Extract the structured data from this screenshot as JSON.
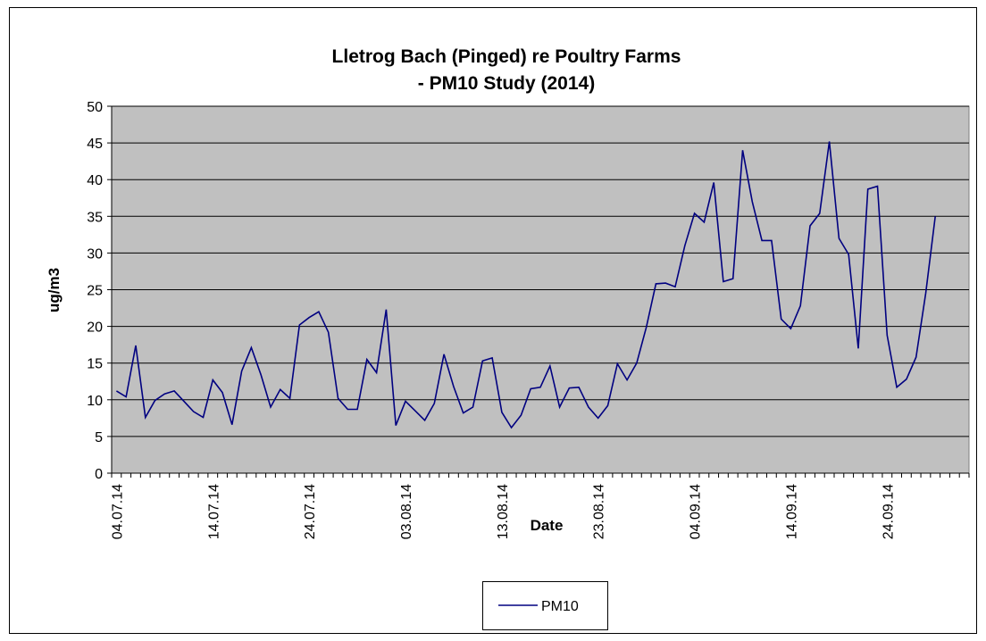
{
  "chart_data": {
    "type": "line",
    "title": [
      "Lletrog Bach (Pinged) re Poultry Farms",
      "- PM10 Study (2014)"
    ],
    "x_label": "Date",
    "y_label": "ug/m3",
    "categories": [
      "04.07.14",
      null,
      null,
      null,
      null,
      null,
      null,
      null,
      null,
      null,
      "14.07.14",
      null,
      null,
      null,
      null,
      null,
      null,
      null,
      null,
      null,
      "24.07.14",
      null,
      null,
      null,
      null,
      null,
      null,
      null,
      null,
      null,
      "03.08.14",
      null,
      null,
      null,
      null,
      null,
      null,
      null,
      null,
      null,
      "13.08.14",
      null,
      null,
      null,
      null,
      null,
      null,
      null,
      null,
      null,
      "23.08.14",
      null,
      null,
      null,
      null,
      null,
      null,
      null,
      null,
      null,
      "04.09.14",
      null,
      null,
      null,
      null,
      null,
      null,
      null,
      null,
      null,
      "14.09.14",
      null,
      null,
      null,
      null,
      null,
      null,
      null,
      null,
      null,
      "24.09.14",
      null,
      null,
      null,
      null,
      null,
      null,
      null,
      null
    ],
    "series": [
      {
        "name": "PM10",
        "color": "#000080",
        "values": [
          11.2,
          10.4,
          17.4,
          7.6,
          9.9,
          10.8,
          11.2,
          9.8,
          8.4,
          7.6,
          12.7,
          11.0,
          6.6,
          13.9,
          17.1,
          13.4,
          9.0,
          11.4,
          10.2,
          20.2,
          21.2,
          22.0,
          19.2,
          10.2,
          8.7,
          8.7,
          15.5,
          13.7,
          22.3,
          6.5,
          9.8,
          8.5,
          7.2,
          9.5,
          16.2,
          11.8,
          8.2,
          9.0,
          15.3,
          15.7,
          8.3,
          6.2,
          7.9,
          11.5,
          11.7,
          14.6,
          9.0,
          11.6,
          11.7,
          9.0,
          7.5,
          9.2,
          14.9,
          12.7,
          15.0,
          19.9,
          25.8,
          25.9,
          25.4,
          31.0,
          35.4,
          34.2,
          39.6,
          26.1,
          26.5,
          44.0,
          37.0,
          31.7,
          31.7,
          21.0,
          19.7,
          22.8,
          33.7,
          35.4,
          45.2,
          32.0,
          29.8,
          17.0,
          38.7,
          39.1,
          18.8,
          11.7,
          12.8,
          15.8,
          24.5,
          35.0,
          null,
          null,
          null
        ]
      }
    ],
    "ylim": [
      0,
      50
    ],
    "yticks": [
      0,
      5,
      10,
      15,
      20,
      25,
      30,
      35,
      40,
      45,
      50
    ],
    "grid": true,
    "legend": "bottom",
    "plot_background": "#c0c0c0"
  }
}
